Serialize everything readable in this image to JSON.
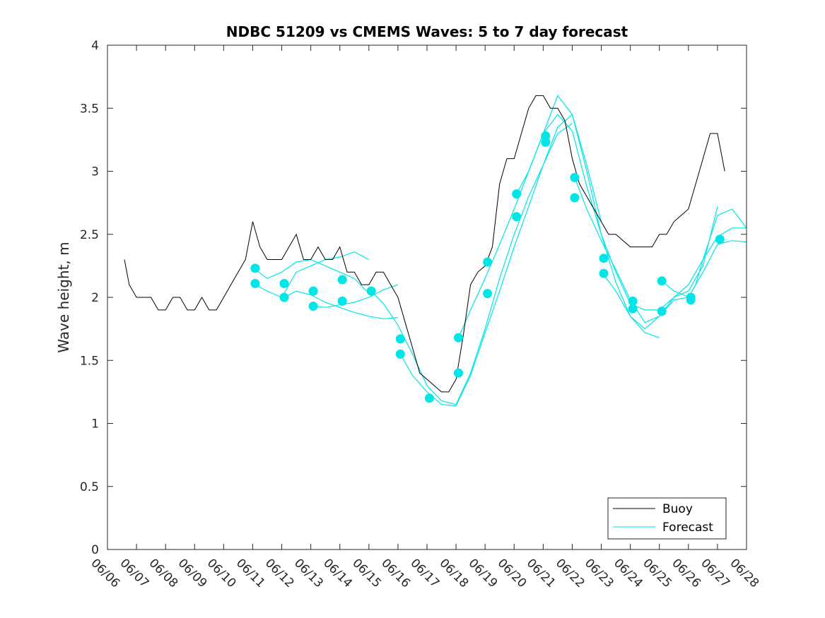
{
  "chart_data": {
    "type": "line",
    "title": "NDBC 51209 vs CMEMS Waves: 5 to 7 day forecast",
    "xlabel": "",
    "ylabel": "Wave height, m",
    "xlim": [
      "06/06",
      "06/28"
    ],
    "ylim": [
      0,
      4
    ],
    "x_ticks": [
      "06/06",
      "06/07",
      "06/08",
      "06/09",
      "06/10",
      "06/11",
      "06/12",
      "06/13",
      "06/14",
      "06/15",
      "06/16",
      "06/17",
      "06/18",
      "06/19",
      "06/20",
      "06/21",
      "06/22",
      "06/23",
      "06/24",
      "06/25",
      "06/26",
      "06/27",
      "06/28"
    ],
    "y_ticks": [
      "0",
      "0.5",
      "1",
      "1.5",
      "2",
      "2.5",
      "3",
      "3.5",
      "4"
    ],
    "grid": false,
    "legend_position": "bottom-right",
    "colors": {
      "buoy": "#000000",
      "forecast": "#00e6e6",
      "marker": "#00e6e6"
    },
    "series": [
      {
        "name": "Buoy",
        "x": [
          "06/06 14:00",
          "06/06 18:00",
          "06/07 00:00",
          "06/07 06:00",
          "06/07 12:00",
          "06/07 18:00",
          "06/08 00:00",
          "06/08 06:00",
          "06/08 12:00",
          "06/08 18:00",
          "06/09 00:00",
          "06/09 06:00",
          "06/09 12:00",
          "06/09 18:00",
          "06/10 00:00",
          "06/10 06:00",
          "06/10 12:00",
          "06/10 18:00",
          "06/11 00:00",
          "06/11 06:00",
          "06/11 12:00",
          "06/11 18:00",
          "06/12 00:00",
          "06/12 06:00",
          "06/12 12:00",
          "06/12 18:00",
          "06/13 00:00",
          "06/13 06:00",
          "06/13 12:00",
          "06/13 18:00",
          "06/14 00:00",
          "06/14 06:00",
          "06/14 12:00",
          "06/14 18:00",
          "06/15 00:00",
          "06/15 06:00",
          "06/15 12:00",
          "06/15 18:00",
          "06/16 00:00",
          "06/16 06:00",
          "06/16 12:00",
          "06/16 18:00",
          "06/17 00:00",
          "06/17 06:00",
          "06/17 12:00",
          "06/17 18:00",
          "06/18 00:00",
          "06/18 06:00",
          "06/18 12:00",
          "06/18 18:00",
          "06/19 00:00",
          "06/19 06:00",
          "06/19 12:00",
          "06/19 18:00",
          "06/20 00:00",
          "06/20 06:00",
          "06/20 12:00",
          "06/20 18:00",
          "06/21 00:00",
          "06/21 06:00",
          "06/21 12:00",
          "06/21 18:00",
          "06/22 00:00",
          "06/22 06:00",
          "06/22 12:00",
          "06/22 18:00",
          "06/23 00:00",
          "06/23 06:00",
          "06/23 12:00",
          "06/23 18:00",
          "06/24 00:00",
          "06/24 06:00",
          "06/24 12:00",
          "06/24 18:00",
          "06/25 00:00",
          "06/25 06:00",
          "06/25 12:00",
          "06/25 18:00",
          "06/26 00:00",
          "06/26 06:00",
          "06/26 12:00",
          "06/26 18:00",
          "06/27 00:00",
          "06/27 06:00"
        ],
        "values": [
          2.3,
          2.1,
          2.0,
          2.0,
          2.0,
          1.9,
          1.9,
          2.0,
          2.0,
          1.9,
          1.9,
          2.0,
          1.9,
          1.9,
          2.0,
          2.1,
          2.2,
          2.3,
          2.6,
          2.4,
          2.3,
          2.3,
          2.3,
          2.4,
          2.5,
          2.3,
          2.3,
          2.4,
          2.3,
          2.3,
          2.4,
          2.2,
          2.2,
          2.1,
          2.1,
          2.2,
          2.2,
          2.1,
          2.0,
          1.8,
          1.6,
          1.4,
          1.35,
          1.3,
          1.25,
          1.25,
          1.35,
          1.7,
          2.1,
          2.2,
          2.25,
          2.4,
          2.9,
          3.1,
          3.1,
          3.3,
          3.5,
          3.6,
          3.6,
          3.5,
          3.5,
          3.4,
          3.1,
          2.9,
          2.8,
          2.7,
          2.6,
          2.5,
          2.5,
          2.45,
          2.4,
          2.4,
          2.4,
          2.4,
          2.5,
          2.5,
          2.6,
          2.65,
          2.7,
          2.9,
          3.1,
          3.3,
          3.3,
          3.0
        ]
      },
      {
        "name": "Forecast",
        "segments": [
          {
            "x": [
              "06/11 02:00",
              "06/11 12:00",
              "06/12 00:00",
              "06/12 12:00",
              "06/13 00:00",
              "06/13 12:00",
              "06/14 00:00",
              "06/14 12:00",
              "06/14 22:00"
            ],
            "values": [
              2.22,
              2.15,
              2.2,
              2.28,
              2.3,
              2.25,
              2.2,
              2.15,
              2.05
            ]
          },
          {
            "x": [
              "06/11 02:00",
              "06/11 12:00",
              "06/12 00:00",
              "06/12 06:00",
              "06/12 12:00",
              "06/13 00:00",
              "06/13 12:00",
              "06/14 00:00",
              "06/14 12:00",
              "06/15 00:00"
            ],
            "values": [
              2.1,
              2.05,
              2.0,
              2.1,
              2.2,
              2.25,
              2.3,
              2.32,
              2.36,
              2.3
            ]
          },
          {
            "x": [
              "06/12 02:00",
              "06/12 12:00",
              "06/13 00:00",
              "06/13 12:00",
              "06/14 00:00",
              "06/14 12:00",
              "06/15 00:00",
              "06/15 12:00",
              "06/16 00:00"
            ],
            "values": [
              2.0,
              2.05,
              2.02,
              1.96,
              1.92,
              1.88,
              1.85,
              1.83,
              1.84
            ]
          },
          {
            "x": [
              "06/13 02:00",
              "06/13 12:00",
              "06/14 00:00",
              "06/14 12:00",
              "06/15 00:00",
              "06/15 12:00",
              "06/16 00:00"
            ],
            "values": [
              1.93,
              1.92,
              1.94,
              1.96,
              2.0,
              2.06,
              2.1
            ]
          },
          {
            "x": [
              "06/15 02:00",
              "06/15 12:00",
              "06/16 00:00",
              "06/16 12:00",
              "06/17 00:00",
              "06/17 12:00",
              "06/18 00:00",
              "06/18 12:00",
              "06/19 00:00",
              "06/19 12:00",
              "06/20 00:00",
              "06/20 12:00",
              "06/21 00:00",
              "06/21 12:00",
              "06/22 00:00"
            ],
            "values": [
              2.05,
              1.95,
              1.78,
              1.55,
              1.3,
              1.18,
              1.15,
              1.4,
              1.75,
              2.15,
              2.5,
              2.8,
              3.05,
              3.3,
              3.38
            ]
          },
          {
            "x": [
              "06/16 02:00",
              "06/16 12:00",
              "06/17 00:00",
              "06/17 12:00",
              "06/18 00:00",
              "06/18 12:00",
              "06/19 00:00",
              "06/19 12:00",
              "06/20 00:00",
              "06/20 12:00",
              "06/21 00:00",
              "06/21 12:00",
              "06/22 00:00",
              "06/22 12:00",
              "06/23 00:00"
            ],
            "values": [
              1.55,
              1.38,
              1.25,
              1.15,
              1.14,
              1.38,
              1.72,
              2.05,
              2.4,
              2.72,
              3.05,
              3.35,
              3.45,
              3.05,
              2.6
            ]
          },
          {
            "x": [
              "06/18 02:00",
              "06/18 12:00",
              "06/19 00:00",
              "06/19 12:00",
              "06/20 00:00",
              "06/20 12:00",
              "06/21 00:00",
              "06/21 12:00",
              "06/22 00:00",
              "06/22 12:00",
              "06/23 00:00",
              "06/23 12:00",
              "06/24 00:00",
              "06/24 12:00",
              "06/25 00:00"
            ],
            "values": [
              1.68,
              1.9,
              2.15,
              2.42,
              2.7,
              3.0,
              3.3,
              3.45,
              3.32,
              2.88,
              2.5,
              2.12,
              1.85,
              1.72,
              1.68
            ]
          },
          {
            "x": [
              "06/20 02:00",
              "06/20 12:00",
              "06/21 00:00",
              "06/21 12:00",
              "06/22 00:00",
              "06/22 12:00",
              "06/23 00:00",
              "06/23 12:00",
              "06/24 00:00",
              "06/24 12:00",
              "06/25 00:00",
              "06/25 12:00",
              "06/26 00:00",
              "06/26 12:00",
              "06/27 00:00"
            ],
            "values": [
              2.82,
              3.0,
              3.3,
              3.6,
              3.45,
              3.0,
              2.5,
              2.2,
              1.95,
              1.9,
              1.9,
              2.0,
              2.05,
              2.25,
              2.72
            ]
          },
          {
            "x": [
              "06/22 02:00",
              "06/22 12:00",
              "06/23 00:00",
              "06/23 12:00",
              "06/24 00:00",
              "06/24 12:00",
              "06/25 00:00",
              "06/25 12:00",
              "06/26 00:00",
              "06/26 12:00",
              "06/27 00:00",
              "06/27 12:00",
              "06/28 00:00"
            ],
            "values": [
              2.95,
              2.7,
              2.45,
              2.22,
              1.98,
              1.8,
              1.85,
              2.0,
              2.1,
              2.3,
              2.48,
              2.55,
              2.55
            ]
          },
          {
            "x": [
              "06/23 02:00",
              "06/23 12:00",
              "06/24 00:00",
              "06/24 12:00",
              "06/25 00:00",
              "06/25 12:00",
              "06/26 00:00",
              "06/26 12:00",
              "06/27 00:00",
              "06/27 12:00",
              "06/28 00:00"
            ],
            "values": [
              2.18,
              2.05,
              1.85,
              1.75,
              1.85,
              1.98,
              2.0,
              2.2,
              2.42,
              2.45,
              2.44
            ]
          },
          {
            "x": [
              "06/25 02:00",
              "06/25 12:00",
              "06/25 20:00",
              "06/26 00:00",
              "06/26 06:00",
              "06/26 12:00",
              "06/27 00:00",
              "06/27 12:00",
              "06/28 00:00"
            ],
            "values": [
              2.13,
              2.05,
              2.02,
              2.0,
              2.1,
              2.3,
              2.65,
              2.7,
              2.55
            ]
          }
        ]
      }
    ],
    "markers": {
      "x": [
        "06/11 02:00",
        "06/11 02:00",
        "06/12 02:00",
        "06/12 02:00",
        "06/13 02:00",
        "06/13 02:00",
        "06/14 02:00",
        "06/14 02:00",
        "06/15 02:00",
        "06/16 02:00",
        "06/16 02:00",
        "06/17 02:00",
        "06/18 02:00",
        "06/18 02:00",
        "06/19 02:00",
        "06/19 02:00",
        "06/20 02:00",
        "06/20 02:00",
        "06/21 02:00",
        "06/21 02:00",
        "06/22 02:00",
        "06/22 02:00",
        "06/23 02:00",
        "06/23 02:00",
        "06/24 02:00",
        "06/24 02:00",
        "06/25 02:00",
        "06/25 02:00",
        "06/26 02:00",
        "06/26 02:00",
        "06/27 02:00"
      ],
      "values": [
        2.23,
        2.11,
        2.11,
        2.0,
        2.05,
        1.93,
        2.14,
        1.97,
        2.05,
        1.67,
        1.55,
        1.2,
        1.68,
        1.4,
        2.28,
        2.03,
        2.82,
        2.64,
        3.28,
        3.23,
        2.95,
        2.79,
        2.31,
        2.19,
        1.97,
        1.91,
        2.13,
        1.89,
        2.0,
        1.98,
        2.46
      ]
    }
  }
}
